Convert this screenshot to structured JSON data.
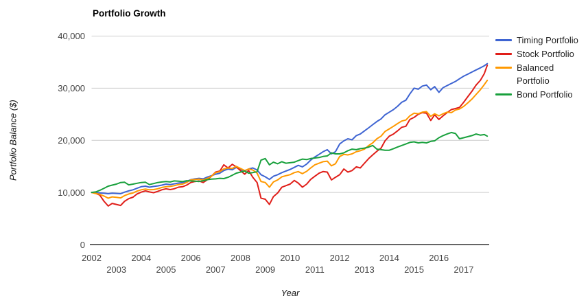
{
  "title": "Portfolio Growth",
  "y_axis": {
    "title": "Portfolio Balance ($)",
    "ticks": [
      {
        "label": "0",
        "value": 0
      },
      {
        "label": "10,000",
        "value": 10000
      },
      {
        "label": "20,000",
        "value": 20000
      },
      {
        "label": "30,000",
        "value": 30000
      },
      {
        "label": "40,000",
        "value": 40000
      }
    ]
  },
  "x_axis": {
    "title": "Year",
    "ticks": [
      {
        "label": "2002",
        "year": 2002,
        "row": 1
      },
      {
        "label": "2003",
        "year": 2003,
        "row": 2
      },
      {
        "label": "2004",
        "year": 2004,
        "row": 1
      },
      {
        "label": "2005",
        "year": 2005,
        "row": 2
      },
      {
        "label": "2006",
        "year": 2006,
        "row": 1
      },
      {
        "label": "2007",
        "year": 2007,
        "row": 2
      },
      {
        "label": "2008",
        "year": 2008,
        "row": 1
      },
      {
        "label": "2009",
        "year": 2009,
        "row": 2
      },
      {
        "label": "2010",
        "year": 2010,
        "row": 1
      },
      {
        "label": "2011",
        "year": 2011,
        "row": 2
      },
      {
        "label": "2012",
        "year": 2012,
        "row": 1
      },
      {
        "label": "2013",
        "year": 2013,
        "row": 2
      },
      {
        "label": "2014",
        "year": 2014,
        "row": 1
      },
      {
        "label": "2015",
        "year": 2015,
        "row": 2
      },
      {
        "label": "2016",
        "year": 2016,
        "row": 1
      },
      {
        "label": "2017",
        "year": 2017,
        "row": 2
      }
    ]
  },
  "colors": {
    "grid": "#cccccc",
    "axis_line": "#333333",
    "tick_text": "#444444"
  },
  "chart_data": {
    "type": "line",
    "title": "Portfolio Growth",
    "xlabel": "Year",
    "ylabel": "Portfolio Balance ($)",
    "xlim": [
      2002,
      2018
    ],
    "ylim": [
      0,
      40000
    ],
    "grid": true,
    "legend_position": "right",
    "x": [
      2002,
      2002.17,
      2002.33,
      2002.5,
      2002.67,
      2002.83,
      2003,
      2003.17,
      2003.33,
      2003.5,
      2003.67,
      2003.83,
      2004,
      2004.17,
      2004.33,
      2004.5,
      2004.67,
      2004.83,
      2005,
      2005.17,
      2005.33,
      2005.5,
      2005.67,
      2005.83,
      2006,
      2006.17,
      2006.33,
      2006.5,
      2006.67,
      2006.83,
      2007,
      2007.17,
      2007.33,
      2007.5,
      2007.67,
      2007.83,
      2008,
      2008.17,
      2008.33,
      2008.5,
      2008.67,
      2008.83,
      2009,
      2009.17,
      2009.33,
      2009.5,
      2009.67,
      2009.83,
      2010,
      2010.17,
      2010.33,
      2010.5,
      2010.67,
      2010.83,
      2011,
      2011.17,
      2011.33,
      2011.5,
      2011.67,
      2011.83,
      2012,
      2012.17,
      2012.33,
      2012.5,
      2012.67,
      2012.83,
      2013,
      2013.17,
      2013.33,
      2013.5,
      2013.67,
      2013.83,
      2014,
      2014.17,
      2014.33,
      2014.5,
      2014.67,
      2014.83,
      2015,
      2015.17,
      2015.33,
      2015.5,
      2015.67,
      2015.83,
      2016,
      2016.17,
      2016.33,
      2016.5,
      2016.67,
      2016.83,
      2017,
      2017.17,
      2017.33,
      2017.5,
      2017.67,
      2017.83,
      2017.95
    ],
    "series": [
      {
        "name": "Timing Portfolio",
        "color": "#3E64D2",
        "values": [
          10000,
          9950,
          9900,
          9850,
          9750,
          9850,
          9800,
          9750,
          10050,
          10300,
          10500,
          10800,
          11100,
          11200,
          11000,
          11150,
          11250,
          11400,
          11600,
          11500,
          11650,
          11800,
          11900,
          12100,
          12450,
          12600,
          12700,
          12600,
          12950,
          13200,
          13500,
          13700,
          14200,
          14500,
          14350,
          14800,
          14400,
          14100,
          14500,
          14700,
          14300,
          13400,
          13000,
          12500,
          13100,
          13400,
          13800,
          14100,
          14400,
          14800,
          15200,
          14900,
          15450,
          16200,
          16800,
          17300,
          17800,
          18200,
          17400,
          17800,
          19300,
          19900,
          20300,
          20100,
          20900,
          21200,
          21800,
          22400,
          23000,
          23600,
          24100,
          24900,
          25400,
          25900,
          26500,
          27300,
          27700,
          28900,
          30000,
          29800,
          30400,
          30600,
          29700,
          30300,
          29200,
          30100,
          30500,
          30900,
          31300,
          31800,
          32300,
          32700,
          33100,
          33500,
          33900,
          34300,
          34700
        ]
      },
      {
        "name": "Stock Portfolio",
        "color": "#E01E19",
        "values": [
          10000,
          9800,
          9500,
          8300,
          7400,
          7900,
          7700,
          7500,
          8300,
          8800,
          9100,
          9700,
          10050,
          10300,
          10100,
          9950,
          10200,
          10500,
          10700,
          10550,
          10700,
          11000,
          11100,
          11400,
          11900,
          12100,
          12200,
          11900,
          12450,
          13100,
          13900,
          14100,
          15300,
          14700,
          15400,
          14900,
          14200,
          13500,
          14200,
          12900,
          11900,
          8900,
          8700,
          7700,
          9200,
          9900,
          11000,
          11300,
          11600,
          12300,
          11800,
          11000,
          11600,
          12500,
          13100,
          13700,
          14000,
          13900,
          12400,
          12900,
          13400,
          14500,
          13900,
          14200,
          14900,
          14700,
          15600,
          16500,
          17200,
          17900,
          18500,
          19900,
          20800,
          21200,
          21800,
          22500,
          22700,
          24000,
          24400,
          25000,
          25300,
          25200,
          23800,
          24900,
          24000,
          24700,
          25300,
          25900,
          26100,
          26300,
          27300,
          28400,
          29400,
          30600,
          31500,
          32800,
          34400
        ]
      },
      {
        "name": "Balanced Portfolio",
        "color": "#FF9900",
        "values": [
          10000,
          9800,
          9650,
          9300,
          8900,
          9150,
          9050,
          8950,
          9400,
          9700,
          9900,
          10250,
          10500,
          10650,
          10500,
          10550,
          10700,
          10950,
          11100,
          11150,
          11300,
          11500,
          11600,
          11900,
          12400,
          12500,
          12550,
          12400,
          12700,
          13100,
          13800,
          14000,
          14500,
          14700,
          14600,
          15000,
          14600,
          14200,
          14500,
          14300,
          13700,
          12100,
          11900,
          11000,
          12000,
          12400,
          13000,
          13200,
          13400,
          13800,
          14000,
          13600,
          14050,
          14700,
          15300,
          15600,
          15900,
          16000,
          15100,
          15500,
          16900,
          17300,
          17200,
          17400,
          17800,
          18000,
          18300,
          19000,
          19500,
          20300,
          20800,
          21700,
          22200,
          22700,
          23200,
          23700,
          23900,
          24700,
          25200,
          25100,
          25400,
          25500,
          24600,
          25100,
          24700,
          25100,
          25400,
          25300,
          25800,
          26000,
          26500,
          27200,
          27900,
          28800,
          29700,
          30700,
          31500
        ]
      },
      {
        "name": "Bond Portfolio",
        "color": "#18A03C",
        "values": [
          10000,
          10100,
          10400,
          10800,
          11200,
          11400,
          11600,
          11900,
          11950,
          11450,
          11600,
          11750,
          11900,
          11950,
          11500,
          11700,
          11900,
          12000,
          12100,
          12000,
          12200,
          12150,
          12100,
          12250,
          12200,
          12150,
          12100,
          12250,
          12450,
          12550,
          12600,
          12700,
          12650,
          12900,
          13300,
          13700,
          13900,
          14100,
          13700,
          13800,
          14000,
          16200,
          16500,
          15300,
          15800,
          15500,
          15900,
          15600,
          15700,
          15800,
          16100,
          16400,
          16300,
          16500,
          16600,
          16700,
          16900,
          17000,
          17600,
          17400,
          17400,
          17600,
          18000,
          18300,
          18200,
          18400,
          18500,
          18700,
          19000,
          18300,
          18200,
          18100,
          18100,
          18400,
          18700,
          19000,
          19300,
          19600,
          19700,
          19500,
          19600,
          19500,
          19800,
          19900,
          20500,
          20900,
          21200,
          21500,
          21300,
          20300,
          20500,
          20700,
          20900,
          21200,
          21000,
          21100,
          20800
        ]
      }
    ]
  }
}
